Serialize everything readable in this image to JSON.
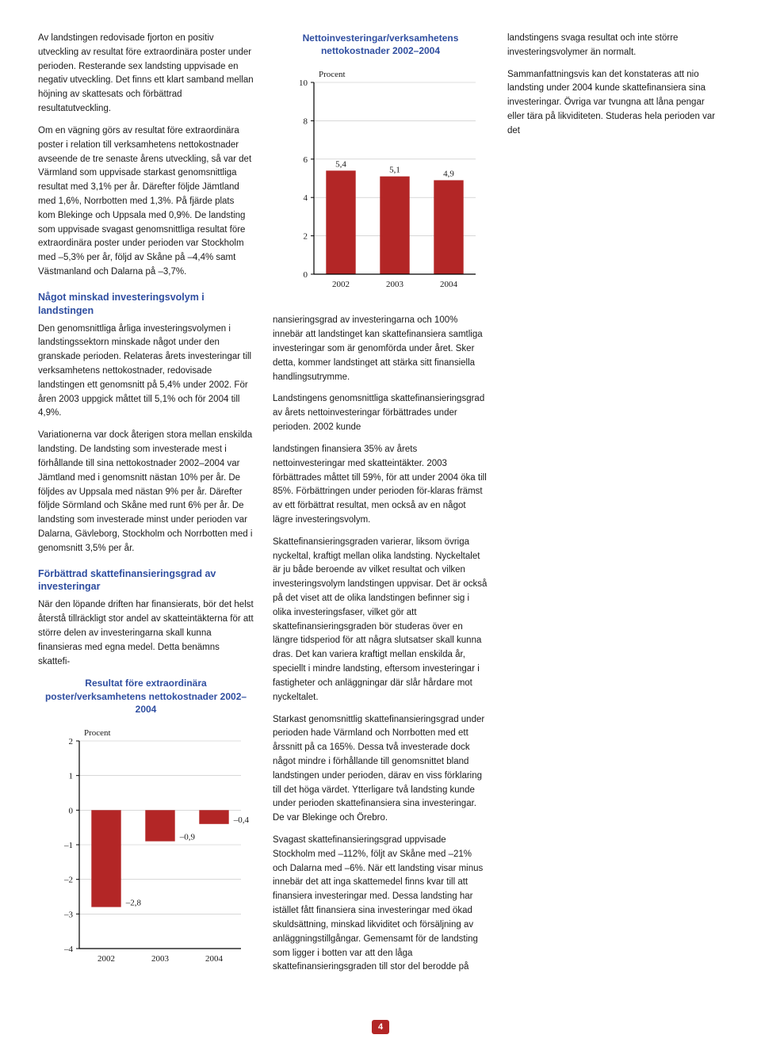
{
  "page_number": "4",
  "colors": {
    "bar_color": "#b32626",
    "axis_color": "#000000",
    "grid_color": "#c0c0c0",
    "heading_color": "#2f4ea0",
    "chart_title_color": "#2f4ea0",
    "text_color": "#1a1a1a"
  },
  "col1": {
    "p1": "Av landstingen redovisade fjorton en positiv utveckling av resultat före extraordinära poster under perioden. Resterande sex landsting uppvisade en negativ utveckling. Det finns ett klart samband mellan höjning av skattesats och förbättrad resultatutveckling.",
    "p2": "Om en vägning görs av resultat före extraordinära poster i relation till verksamhetens nettokostnader avseende de tre senaste årens utveckling, så var det Värmland som uppvisade starkast genomsnittliga resultat med 3,1% per år. Därefter följde Jämtland med 1,6%, Norrbotten med 1,3%. På fjärde plats kom Blekinge och Uppsala med 0,9%. De landsting som uppvisade svagast genomsnittliga resultat före extraordinära poster under perioden var Stockholm med –5,3% per år, följd av Skåne på –4,4% samt Västmanland och Dalarna på –3,7%.",
    "h1": "Något minskad investeringsvolym i landstingen",
    "p3": "Den genomsnittliga årliga investeringsvolymen i landstingssektorn minskade något under den granskade perioden. Relateras årets investeringar till verksamhetens nettokostnader, redovisade landstingen ett genomsnitt på 5,4% under 2002. För åren 2003 uppgick måttet till 5,1% och för 2004 till 4,9%.",
    "p4": "Variationerna var dock återigen stora mellan enskilda landsting. De landsting som investerade mest i förhållande till sina nettokostnader 2002–2004 var Jämtland med i genomsnitt nästan 10% per år. De följdes av Uppsala med nästan 9% per år. Därefter följde Sörmland och Skåne med runt 6% per år. De landsting som investerade minst under perioden var Dalarna, Gävleborg, Stockholm och Norrbotten med i genomsnitt 3,5% per år.",
    "h2": "Förbättrad skattefinansieringsgrad av investeringar",
    "p5": "När den löpande driften har finansierats, bör det helst återstå tillräckligt stor andel av skatteintäkterna för att större delen av investeringarna skall kunna finansieras med egna medel. Detta benämns skattefi-"
  },
  "chart1": {
    "title": "Resultat före extraordinära poster/verksamhetens nettokostnader 2002–2004",
    "ylabel": "Procent",
    "categories": [
      "2002",
      "2003",
      "2004"
    ],
    "values": [
      -2.8,
      -0.9,
      -0.4
    ],
    "value_labels": [
      "–2,8",
      "–0,9",
      "–0,4"
    ],
    "ylim_min": -4,
    "ylim_max": 2,
    "ytick_step": 1,
    "ytick_labels": [
      "2",
      "1",
      "0",
      "–1",
      "–2",
      "–3",
      "–4"
    ],
    "bar_width": 0.55
  },
  "chart2": {
    "title": "Nettoinvesteringar/verksamhetens nettokostnader 2002–2004",
    "ylabel": "Procent",
    "categories": [
      "2002",
      "2003",
      "2004"
    ],
    "values": [
      5.4,
      5.1,
      4.9
    ],
    "value_labels": [
      "5,4",
      "5,1",
      "4,9"
    ],
    "ylim_min": 0,
    "ylim_max": 10,
    "ytick_step": 2,
    "ytick_labels": [
      "10",
      "8",
      "6",
      "4",
      "2",
      "0"
    ],
    "bar_width": 0.55
  },
  "col2": {
    "p1": "nansieringsgrad av investeringarna och 100% innebär att landstinget kan skattefinansiera samtliga investeringar som är genomförda under året. Sker detta, kommer landstinget att stärka sitt finansiella handlingsutrymme.",
    "p2": "Landstingens genomsnittliga skattefinansieringsgrad av årets nettoinvesteringar förbättrades under perioden. 2002 kunde"
  },
  "col3": {
    "p1": "landstingen finansiera 35% av årets nettoinvesteringar med skatteintäkter. 2003 förbättrades måttet till 59%, för att under 2004 öka till 85%. Förbättringen under perioden för-klaras främst av ett förbättrat resultat, men också av en något lägre investeringsvolym.",
    "p2": "Skattefinansieringsgraden varierar, liksom övriga nyckeltal, kraftigt mellan olika landsting. Nyckeltalet är ju både beroende av vilket resultat och vilken investeringsvolym landstingen uppvisar. Det är också på det viset att de olika landstingen befinner sig i olika investeringsfaser, vilket gör att skattefinansieringsgraden bör studeras över en längre tidsperiod för att några slutsatser skall kunna dras. Det kan variera kraftigt mellan enskilda år, speciellt i mindre landsting, eftersom investeringar i fastigheter och anläggningar där slår hårdare mot nyckeltalet.",
    "p3": "Starkast genomsnittlig skattefinansieringsgrad under perioden hade Värmland och Norrbotten med ett årssnitt på ca 165%. Dessa två investerade dock något mindre i förhållande till genomsnittet bland landstingen under perioden, därav en viss förklaring till det höga värdet. Ytterligare två landsting kunde under perioden skattefinansiera sina investeringar. De var Blekinge och Örebro.",
    "p4": "Svagast skattefinansieringsgrad uppvisade Stockholm med –112%, följt av Skåne med –21% och Dalarna med –6%. När ett landsting visar minus innebär det att inga skattemedel finns kvar till att finansiera investeringar med. Dessa landsting har istället fått finansiera sina investeringar med ökad skuldsättning, minskad likviditet och försäljning av anläggningstillgångar. Gemensamt för de landsting som ligger i botten var att den låga skattefinansieringsgraden till stor del berodde på landstingens svaga resultat och inte större investeringsvolymer än normalt.",
    "p5": "Sammanfattningsvis kan det konstateras att nio landsting under 2004 kunde skattefinansiera sina investeringar. Övriga var tvungna att låna pengar eller tära på likviditeten. Studeras hela perioden var det"
  }
}
